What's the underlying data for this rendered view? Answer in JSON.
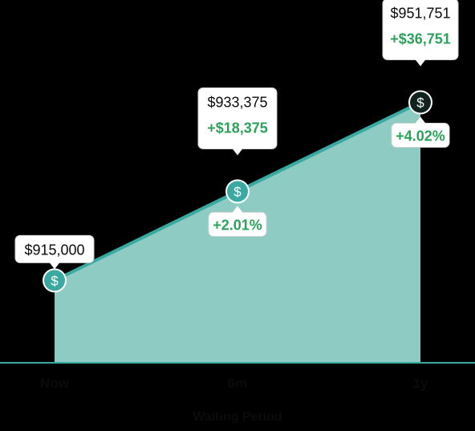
{
  "chart_data": {
    "type": "area",
    "xlabel": "Waiting Period",
    "categories": [
      "Now",
      "6m",
      "1y"
    ],
    "values": [
      915000,
      933375,
      951751
    ],
    "value_labels": [
      "$915,000",
      "$933,375",
      "$951,751"
    ],
    "gain_labels": [
      "",
      "+$18,375",
      "+$36,751"
    ],
    "percent_labels": [
      "",
      "+2.01%",
      "+4.02%"
    ],
    "ylim": [
      898000,
      953000
    ],
    "grid": false,
    "legend": "none"
  },
  "colors": {
    "area_fill": "#8ecbc3",
    "line": "#3aa9a1",
    "marker": "#3aa9a1",
    "marker_final": "#10231f",
    "gain": "#2aa25a",
    "baseline": "#3aa9a1"
  },
  "icons": {
    "marker": "dollar-icon"
  }
}
